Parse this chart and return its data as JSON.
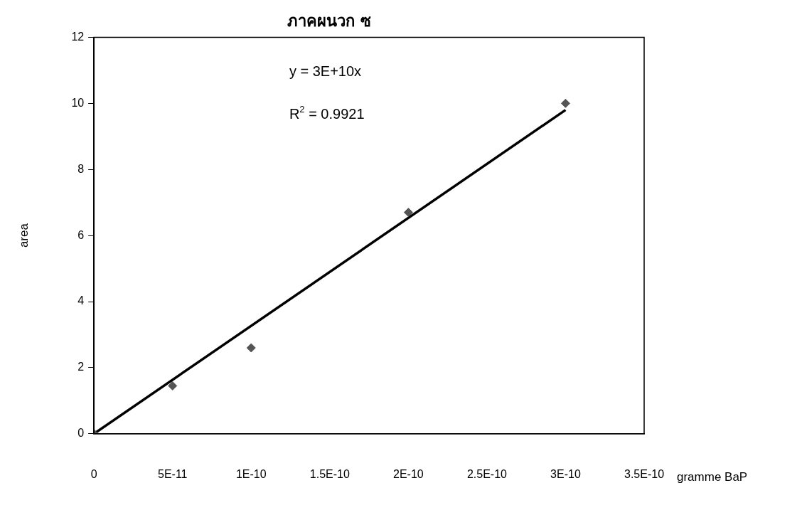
{
  "chart_data": {
    "type": "scatter",
    "title": "ภาคผนวก ซ",
    "xlabel": "gramme BaP",
    "ylabel": "area",
    "x": [
      0,
      5e-11,
      1e-10,
      2e-10,
      3e-10
    ],
    "series": [
      {
        "color": "#555555",
        "values": [
          0,
          1.45,
          2.6,
          6.7,
          10.0
        ]
      },
      {
        "type": "line",
        "color": "#000000",
        "x": [
          0,
          3e-10
        ],
        "values": [
          0,
          9.8
        ],
        "marker": "none"
      }
    ],
    "marker": "diamond",
    "grid": false,
    "legend": false,
    "xlim": [
      0,
      3.5e-10
    ],
    "xticks": [
      0,
      {
        "value": 5e-11,
        "label": "5E-11"
      },
      {
        "value": 1e-10,
        "label": "1E-10"
      },
      {
        "value": 1.5e-10,
        "label": "1.5E-10"
      },
      {
        "value": 2e-10,
        "label": "2E-10"
      },
      {
        "value": 2.5e-10,
        "label": "2.5E-10"
      },
      {
        "value": 3e-10,
        "label": "3E-10"
      },
      {
        "value": 3.5e-10,
        "label": "3.5E-10"
      }
    ],
    "ylim": [
      0,
      12
    ],
    "yticks": [
      0,
      2,
      4,
      6,
      8,
      10,
      12
    ],
    "annotations": [
      "y = 3E+10x",
      "R$^{2}$ = 0.9921"
    ]
  }
}
